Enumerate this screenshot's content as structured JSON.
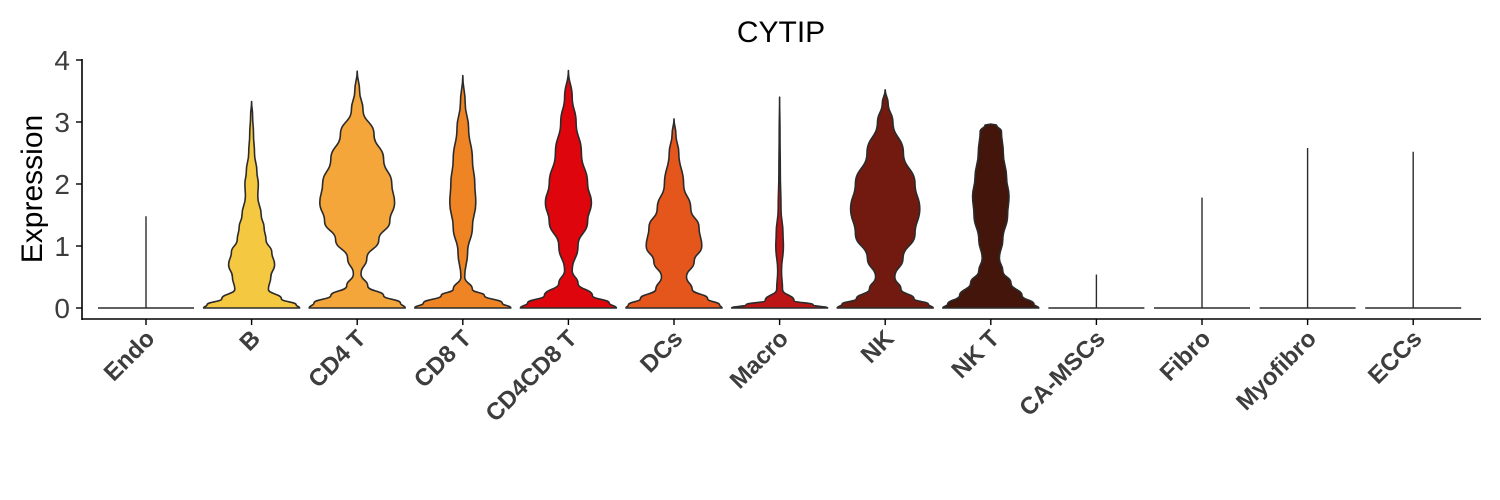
{
  "chart_data": {
    "type": "violin",
    "title": "CYTIP",
    "xlabel": "",
    "ylabel": "Expression",
    "ylim": [
      0,
      4
    ],
    "yticks": [
      "0",
      "1",
      "2",
      "3",
      "4"
    ],
    "grid": false,
    "legend": "none",
    "categories": [
      "Endo",
      "B",
      "CD4 T",
      "CD8 T",
      "CD4CD8 T",
      "DCs",
      "Macro",
      "NK",
      "NK T",
      "CA-MSCs",
      "Fibro",
      "Myofibro",
      "ECCs"
    ],
    "series": [
      {
        "category": "Endo",
        "color": "#6b6b6b",
        "max": 1.48,
        "profile": [
          [
            0,
            1
          ],
          [
            0.03,
            0.0
          ],
          [
            1.48,
            0.0
          ]
        ]
      },
      {
        "category": "B",
        "color": "#f5c842",
        "max": 3.33,
        "profile": [
          [
            0,
            1
          ],
          [
            0.05,
            0.93
          ],
          [
            0.15,
            0.62
          ],
          [
            0.3,
            0.35
          ],
          [
            0.5,
            0.4
          ],
          [
            0.7,
            0.48
          ],
          [
            0.9,
            0.42
          ],
          [
            1.1,
            0.3
          ],
          [
            1.3,
            0.26
          ],
          [
            1.5,
            0.2
          ],
          [
            1.8,
            0.13
          ],
          [
            2.0,
            0.14
          ],
          [
            2.2,
            0.11
          ],
          [
            2.5,
            0.06
          ],
          [
            2.8,
            0.04
          ],
          [
            3.1,
            0.02
          ],
          [
            3.33,
            0.0
          ]
        ]
      },
      {
        "category": "CD4 T",
        "color": "#f4a63a",
        "max": 3.82,
        "profile": [
          [
            0,
            1
          ],
          [
            0.08,
            0.9
          ],
          [
            0.2,
            0.55
          ],
          [
            0.35,
            0.22
          ],
          [
            0.55,
            0.08
          ],
          [
            0.8,
            0.2
          ],
          [
            1.1,
            0.45
          ],
          [
            1.4,
            0.68
          ],
          [
            1.7,
            0.78
          ],
          [
            2.0,
            0.72
          ],
          [
            2.4,
            0.55
          ],
          [
            2.8,
            0.35
          ],
          [
            3.2,
            0.12
          ],
          [
            3.5,
            0.05
          ],
          [
            3.82,
            0.0
          ]
        ]
      },
      {
        "category": "CD8 T",
        "color": "#ef8425",
        "max": 3.75,
        "profile": [
          [
            0,
            1
          ],
          [
            0.08,
            0.82
          ],
          [
            0.2,
            0.45
          ],
          [
            0.3,
            0.2
          ],
          [
            0.5,
            0.04
          ],
          [
            0.9,
            0.1
          ],
          [
            1.3,
            0.2
          ],
          [
            1.7,
            0.27
          ],
          [
            2.0,
            0.25
          ],
          [
            2.4,
            0.2
          ],
          [
            2.9,
            0.12
          ],
          [
            3.3,
            0.05
          ],
          [
            3.75,
            0.0
          ]
        ]
      },
      {
        "category": "CD4CD8 T",
        "color": "#de060c",
        "max": 3.83,
        "profile": [
          [
            0,
            1
          ],
          [
            0.08,
            0.85
          ],
          [
            0.2,
            0.5
          ],
          [
            0.4,
            0.2
          ],
          [
            0.6,
            0.08
          ],
          [
            1.0,
            0.2
          ],
          [
            1.4,
            0.4
          ],
          [
            1.7,
            0.48
          ],
          [
            2.0,
            0.4
          ],
          [
            2.5,
            0.27
          ],
          [
            3.0,
            0.16
          ],
          [
            3.4,
            0.08
          ],
          [
            3.83,
            0.0
          ]
        ]
      },
      {
        "category": "DCs",
        "color": "#e5561c",
        "max": 3.05,
        "profile": [
          [
            0,
            1
          ],
          [
            0.05,
            0.95
          ],
          [
            0.15,
            0.7
          ],
          [
            0.3,
            0.38
          ],
          [
            0.5,
            0.26
          ],
          [
            0.75,
            0.42
          ],
          [
            1.0,
            0.58
          ],
          [
            1.3,
            0.52
          ],
          [
            1.6,
            0.35
          ],
          [
            2.0,
            0.2
          ],
          [
            2.5,
            0.1
          ],
          [
            2.8,
            0.04
          ],
          [
            3.05,
            0.0
          ]
        ]
      },
      {
        "category": "Macro",
        "color": "#bd1515",
        "max": 3.4,
        "profile": [
          [
            0,
            1
          ],
          [
            0.05,
            0.7
          ],
          [
            0.12,
            0.3
          ],
          [
            0.3,
            0.06
          ],
          [
            0.6,
            0.04
          ],
          [
            1.0,
            0.08
          ],
          [
            1.2,
            0.07
          ],
          [
            1.6,
            0.03
          ],
          [
            2.2,
            0.015
          ],
          [
            2.8,
            0.008
          ],
          [
            3.4,
            0.0
          ]
        ]
      },
      {
        "category": "NK",
        "color": "#731a10",
        "max": 3.52,
        "profile": [
          [
            0,
            1
          ],
          [
            0.06,
            0.9
          ],
          [
            0.15,
            0.6
          ],
          [
            0.3,
            0.33
          ],
          [
            0.5,
            0.2
          ],
          [
            0.8,
            0.37
          ],
          [
            1.2,
            0.62
          ],
          [
            1.6,
            0.72
          ],
          [
            2.0,
            0.62
          ],
          [
            2.5,
            0.38
          ],
          [
            3.0,
            0.16
          ],
          [
            3.3,
            0.06
          ],
          [
            3.52,
            0.0
          ]
        ]
      },
      {
        "category": "NK T",
        "color": "#43150b",
        "max": 2.97,
        "profile": [
          [
            0,
            1
          ],
          [
            0.06,
            0.9
          ],
          [
            0.2,
            0.65
          ],
          [
            0.4,
            0.42
          ],
          [
            0.6,
            0.25
          ],
          [
            0.8,
            0.18
          ],
          [
            1.1,
            0.25
          ],
          [
            1.5,
            0.35
          ],
          [
            1.8,
            0.38
          ],
          [
            2.1,
            0.33
          ],
          [
            2.5,
            0.26
          ],
          [
            2.85,
            0.22
          ],
          [
            2.95,
            0.12
          ],
          [
            2.97,
            0.0
          ]
        ]
      },
      {
        "category": "CA-MSCs",
        "color": "#6b6b6b",
        "max": 0.54,
        "profile": [
          [
            0,
            1
          ],
          [
            0.03,
            0.0
          ],
          [
            0.54,
            0.0
          ]
        ]
      },
      {
        "category": "Fibro",
        "color": "#6b6b6b",
        "max": 1.78,
        "profile": [
          [
            0,
            1
          ],
          [
            0.03,
            0.0
          ],
          [
            1.78,
            0.0
          ]
        ]
      },
      {
        "category": "Myofibro",
        "color": "#6b6b6b",
        "max": 2.58,
        "profile": [
          [
            0,
            1
          ],
          [
            0.03,
            0.0
          ],
          [
            2.58,
            0.0
          ]
        ]
      },
      {
        "category": "ECCs",
        "color": "#6b6b6b",
        "max": 2.52,
        "profile": [
          [
            0,
            1
          ],
          [
            0.03,
            0.0
          ],
          [
            2.52,
            0.0
          ]
        ]
      }
    ]
  }
}
